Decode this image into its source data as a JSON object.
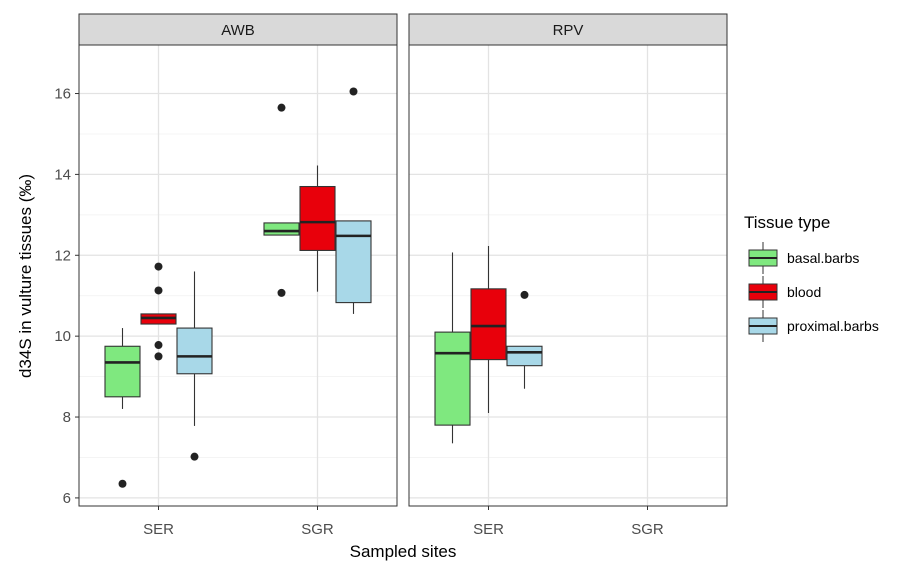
{
  "chart_data": {
    "type": "boxplot",
    "facets": [
      "AWB",
      "RPV"
    ],
    "categories": [
      "SER",
      "SGR"
    ],
    "xlabel": "Sampled sites",
    "ylabel": "d34S in vulture tissues (‰)",
    "ylim": [
      5.8,
      17.2
    ],
    "yticks": [
      6,
      8,
      10,
      12,
      14,
      16
    ],
    "ytick_labels": [
      "6",
      "8",
      "10",
      "12",
      "14",
      "16"
    ],
    "grid": true,
    "legend": {
      "title": "Tissue type",
      "position": "right",
      "entries": [
        "basal.barbs",
        "blood",
        "proximal.barbs"
      ]
    },
    "series": [
      {
        "name": "basal.barbs",
        "color": "#7fe87f",
        "boxes": [
          {
            "facet": "AWB",
            "category": "SER",
            "whisker_low": 8.2,
            "q1": 8.5,
            "median": 9.35,
            "q3": 9.75,
            "whisker_high": 10.2,
            "outliers": [
              6.35
            ]
          },
          {
            "facet": "AWB",
            "category": "SGR",
            "whisker_low": 12.5,
            "q1": 12.5,
            "median": 12.6,
            "q3": 12.8,
            "whisker_high": 12.8,
            "outliers": [
              15.65,
              11.07
            ]
          },
          {
            "facet": "RPV",
            "category": "SER",
            "whisker_low": 7.35,
            "q1": 7.8,
            "median": 9.58,
            "q3": 10.1,
            "whisker_high": 12.07,
            "outliers": []
          }
        ]
      },
      {
        "name": "blood",
        "color": "#e8000b",
        "boxes": [
          {
            "facet": "AWB",
            "category": "SER",
            "whisker_low": 10.3,
            "q1": 10.3,
            "median": 10.45,
            "q3": 10.55,
            "whisker_high": 10.55,
            "outliers": [
              11.72,
              11.13,
              9.78,
              9.5
            ]
          },
          {
            "facet": "AWB",
            "category": "SGR",
            "whisker_low": 11.1,
            "q1": 12.12,
            "median": 12.82,
            "q3": 13.7,
            "whisker_high": 14.22,
            "outliers": []
          },
          {
            "facet": "RPV",
            "category": "SER",
            "whisker_low": 8.1,
            "q1": 9.42,
            "median": 10.25,
            "q3": 11.17,
            "whisker_high": 12.23,
            "outliers": []
          }
        ]
      },
      {
        "name": "proximal.barbs",
        "color": "#a8d8e8",
        "boxes": [
          {
            "facet": "AWB",
            "category": "SER",
            "whisker_low": 7.78,
            "q1": 9.07,
            "median": 9.5,
            "q3": 10.2,
            "whisker_high": 11.6,
            "outliers": [
              7.02
            ]
          },
          {
            "facet": "AWB",
            "category": "SGR",
            "whisker_low": 10.55,
            "q1": 10.83,
            "median": 12.48,
            "q3": 12.85,
            "whisker_high": 12.85,
            "outliers": [
              16.05
            ]
          },
          {
            "facet": "RPV",
            "category": "SER",
            "whisker_low": 8.7,
            "q1": 9.27,
            "median": 9.6,
            "q3": 9.75,
            "whisker_high": 9.75,
            "outliers": [
              11.02
            ]
          }
        ]
      }
    ]
  }
}
